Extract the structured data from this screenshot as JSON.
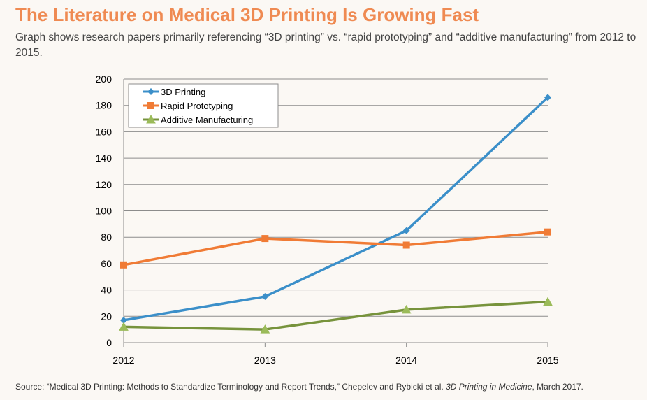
{
  "header": {
    "title": "The Literature on Medical 3D Printing Is Growing Fast",
    "subtitle": "Graph shows research papers primarily referencing “3D printing” vs. “rapid prototyping” and “additive manufacturing” from 2012 to 2015."
  },
  "source": {
    "prefix": "Source: “Medical 3D Printing: Methods to Standardize Terminology and Report Trends,” Chepelev and Rybicki et al. ",
    "journal": "3D Printing in Medicine",
    "suffix": ", March 2017."
  },
  "chart_data": {
    "type": "line",
    "x": [
      "2012",
      "2013",
      "2014",
      "2015"
    ],
    "ylim": [
      0,
      200
    ],
    "yticks": [
      0,
      20,
      40,
      60,
      80,
      100,
      120,
      140,
      160,
      180,
      200
    ],
    "grid": true,
    "legend_position": "top-left",
    "series": [
      {
        "name": "3D Printing",
        "values": [
          17,
          35,
          85,
          186
        ],
        "color": "#3b8fc9",
        "marker": "diamond"
      },
      {
        "name": "Rapid Prototyping",
        "values": [
          59,
          79,
          74,
          84
        ],
        "color": "#f07b35",
        "marker": "square"
      },
      {
        "name": "Additive Manufacturing",
        "values": [
          12,
          10,
          25,
          31
        ],
        "color": "#77933c",
        "marker": "triangle"
      }
    ]
  }
}
